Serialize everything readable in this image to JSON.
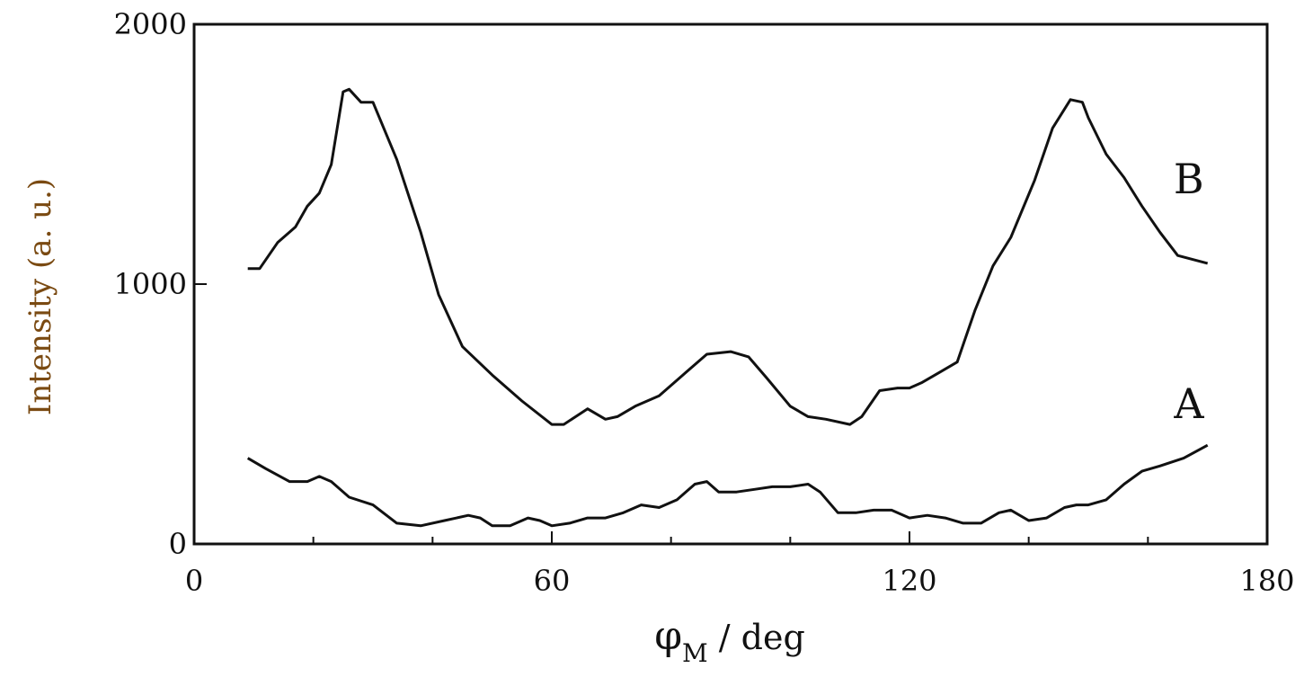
{
  "chart_data": {
    "type": "line",
    "title": "",
    "ylabel": "Intensity (a. u.)",
    "xlabel": {
      "symbol": "φ",
      "subscript": "M",
      "suffix": " / deg"
    },
    "xlim": [
      0,
      180
    ],
    "ylim": [
      0,
      2000
    ],
    "x_ticks": [
      0,
      60,
      120,
      180
    ],
    "x_minor_ticks": [
      20,
      40,
      80,
      100,
      140,
      160
    ],
    "y_ticks": [
      0,
      1000,
      2000
    ],
    "grid": false,
    "line_color": "#111111",
    "ylabel_color": "#7a4a12",
    "series": [
      {
        "name": "B",
        "x": [
          9,
          11,
          14,
          17,
          19,
          21,
          23,
          25,
          26,
          28,
          30,
          34,
          38,
          41,
          45,
          50,
          55,
          60,
          62,
          66,
          69,
          71,
          74,
          78,
          82,
          86,
          90,
          93,
          96,
          100,
          103,
          106,
          110,
          112,
          115,
          118,
          120,
          122,
          125,
          128,
          131,
          134,
          137,
          141,
          144,
          147,
          149,
          150,
          153,
          156,
          159,
          162,
          165,
          170
        ],
        "values": [
          1060,
          1060,
          1160,
          1220,
          1300,
          1350,
          1460,
          1740,
          1750,
          1700,
          1700,
          1480,
          1200,
          960,
          760,
          650,
          550,
          460,
          460,
          520,
          480,
          490,
          530,
          570,
          650,
          730,
          740,
          720,
          640,
          530,
          490,
          480,
          460,
          490,
          590,
          600,
          600,
          620,
          660,
          700,
          900,
          1070,
          1180,
          1400,
          1600,
          1710,
          1700,
          1640,
          1500,
          1410,
          1300,
          1200,
          1110,
          1080
        ]
      },
      {
        "name": "A",
        "x": [
          9,
          12,
          16,
          19,
          21,
          23,
          26,
          30,
          34,
          38,
          42,
          46,
          48,
          50,
          53,
          56,
          58,
          60,
          63,
          66,
          69,
          72,
          75,
          78,
          81,
          84,
          86,
          88,
          91,
          94,
          97,
          100,
          103,
          105,
          108,
          111,
          114,
          117,
          120,
          123,
          126,
          129,
          132,
          135,
          137,
          140,
          143,
          146,
          148,
          150,
          153,
          156,
          159,
          162,
          166,
          170
        ],
        "values": [
          330,
          290,
          240,
          240,
          260,
          240,
          180,
          150,
          80,
          70,
          90,
          110,
          100,
          70,
          70,
          100,
          90,
          70,
          80,
          100,
          100,
          120,
          150,
          140,
          170,
          230,
          240,
          200,
          200,
          210,
          220,
          220,
          230,
          200,
          120,
          120,
          130,
          130,
          100,
          110,
          100,
          80,
          80,
          120,
          130,
          90,
          100,
          140,
          150,
          150,
          170,
          230,
          280,
          300,
          330,
          380
        ]
      }
    ]
  }
}
